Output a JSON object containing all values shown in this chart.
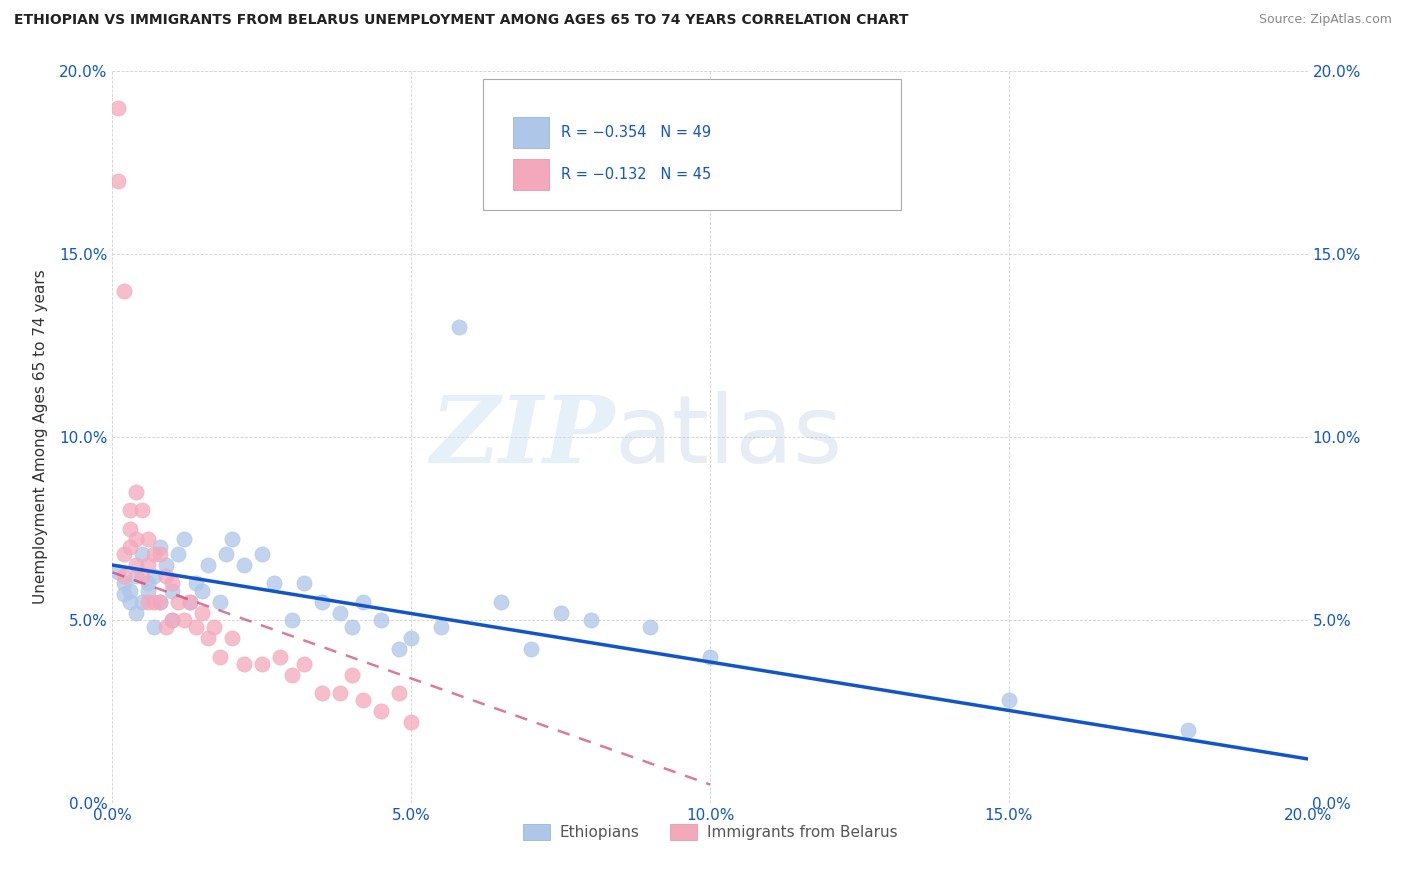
{
  "title": "ETHIOPIAN VS IMMIGRANTS FROM BELARUS UNEMPLOYMENT AMONG AGES 65 TO 74 YEARS CORRELATION CHART",
  "source": "Source: ZipAtlas.com",
  "ylabel": "Unemployment Among Ages 65 to 74 years",
  "watermark_zip": "ZIP",
  "watermark_atlas": "atlas",
  "legend_r1": "R = −0.354",
  "legend_n1": "N = 49",
  "legend_r2": "R = −0.132",
  "legend_n2": "N = 45",
  "series1_label": "Ethiopians",
  "series2_label": "Immigrants from Belarus",
  "color1": "#aec6e8",
  "color2": "#f4a8bc",
  "trendline1_color": "#1155cc",
  "trendline2_color": "#cc3366",
  "xlim": [
    0.0,
    0.2
  ],
  "ylim": [
    0.0,
    0.2
  ],
  "xticks": [
    0.0,
    0.05,
    0.1,
    0.15,
    0.2
  ],
  "yticks": [
    0.0,
    0.05,
    0.1,
    0.15,
    0.2
  ],
  "ethiopians_x": [
    0.001,
    0.002,
    0.002,
    0.003,
    0.003,
    0.004,
    0.004,
    0.005,
    0.005,
    0.006,
    0.006,
    0.007,
    0.007,
    0.008,
    0.008,
    0.009,
    0.01,
    0.01,
    0.011,
    0.012,
    0.013,
    0.014,
    0.015,
    0.016,
    0.018,
    0.019,
    0.02,
    0.022,
    0.025,
    0.027,
    0.03,
    0.032,
    0.035,
    0.038,
    0.04,
    0.042,
    0.045,
    0.048,
    0.05,
    0.055,
    0.058,
    0.065,
    0.07,
    0.075,
    0.08,
    0.09,
    0.1,
    0.15,
    0.18
  ],
  "ethiopians_y": [
    0.063,
    0.06,
    0.057,
    0.055,
    0.058,
    0.062,
    0.052,
    0.068,
    0.055,
    0.058,
    0.06,
    0.062,
    0.048,
    0.07,
    0.055,
    0.065,
    0.058,
    0.05,
    0.068,
    0.072,
    0.055,
    0.06,
    0.058,
    0.065,
    0.055,
    0.068,
    0.072,
    0.065,
    0.068,
    0.06,
    0.05,
    0.06,
    0.055,
    0.052,
    0.048,
    0.055,
    0.05,
    0.042,
    0.045,
    0.048,
    0.13,
    0.055,
    0.042,
    0.052,
    0.05,
    0.048,
    0.04,
    0.028,
    0.02
  ],
  "belarus_x": [
    0.001,
    0.001,
    0.002,
    0.002,
    0.002,
    0.003,
    0.003,
    0.003,
    0.004,
    0.004,
    0.004,
    0.005,
    0.005,
    0.006,
    0.006,
    0.006,
    0.007,
    0.007,
    0.008,
    0.008,
    0.009,
    0.009,
    0.01,
    0.01,
    0.011,
    0.012,
    0.013,
    0.014,
    0.015,
    0.016,
    0.017,
    0.018,
    0.02,
    0.022,
    0.025,
    0.028,
    0.03,
    0.032,
    0.035,
    0.038,
    0.04,
    0.042,
    0.045,
    0.048,
    0.05
  ],
  "belarus_y": [
    0.19,
    0.17,
    0.14,
    0.068,
    0.062,
    0.08,
    0.075,
    0.07,
    0.085,
    0.072,
    0.065,
    0.08,
    0.062,
    0.072,
    0.065,
    0.055,
    0.068,
    0.055,
    0.068,
    0.055,
    0.062,
    0.048,
    0.06,
    0.05,
    0.055,
    0.05,
    0.055,
    0.048,
    0.052,
    0.045,
    0.048,
    0.04,
    0.045,
    0.038,
    0.038,
    0.04,
    0.035,
    0.038,
    0.03,
    0.03,
    0.035,
    0.028,
    0.025,
    0.03,
    0.022
  ],
  "trendline1_x0": 0.0,
  "trendline1_y0": 0.065,
  "trendline1_x1": 0.2,
  "trendline1_y1": 0.012,
  "trendline2_x0": 0.0,
  "trendline2_y0": 0.063,
  "trendline2_x1": 0.1,
  "trendline2_y1": 0.005
}
